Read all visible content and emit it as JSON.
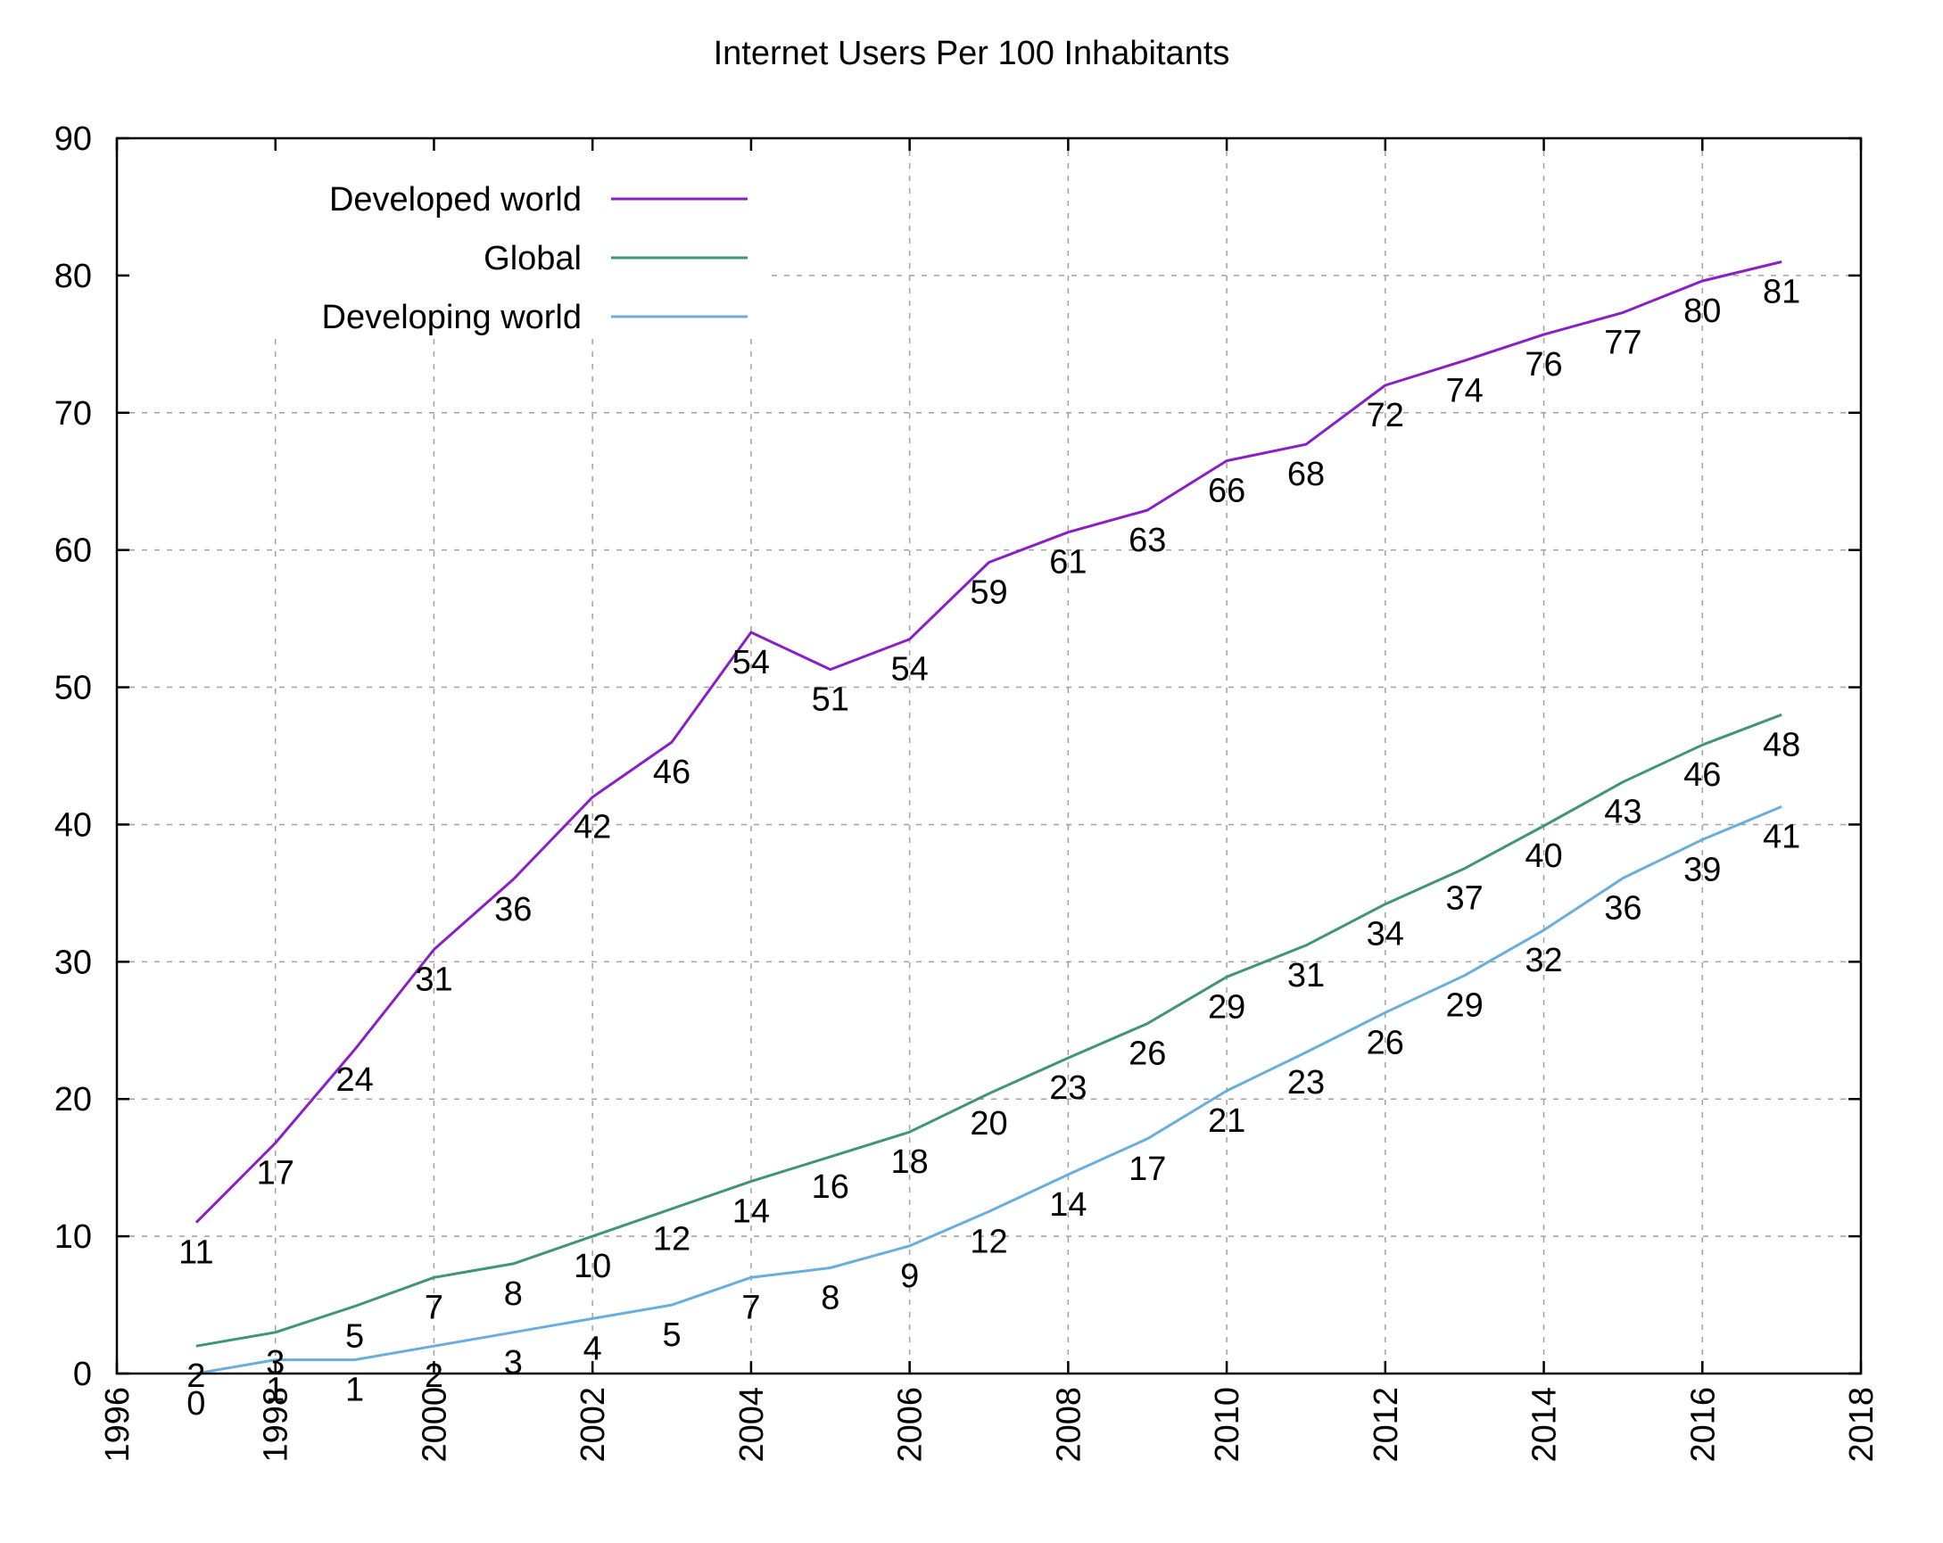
{
  "chart_data": {
    "type": "line",
    "title": "Internet Users Per 100 Inhabitants",
    "xlabel": "",
    "ylabel": "",
    "xlim": [
      1996,
      2018
    ],
    "ylim": [
      0,
      90
    ],
    "x_ticks": [
      "1996",
      "1998",
      "2000",
      "2002",
      "2004",
      "2006",
      "2008",
      "2010",
      "2012",
      "2014",
      "2016",
      "2018"
    ],
    "y_ticks": [
      "0",
      "10",
      "20",
      "30",
      "40",
      "50",
      "60",
      "70",
      "80",
      "90"
    ],
    "grid": true,
    "legend_position": "top-left",
    "x": [
      1997,
      1998,
      1999,
      2000,
      2001,
      2002,
      2003,
      2004,
      2005,
      2006,
      2007,
      2008,
      2009,
      2010,
      2011,
      2012,
      2013,
      2014,
      2015,
      2016,
      2017
    ],
    "series": [
      {
        "name": "Developed world",
        "color": "#8a1ec8",
        "values": [
          11,
          16.8,
          23.6,
          30.9,
          36,
          42,
          46,
          54,
          51.3,
          53.5,
          59.1,
          61.3,
          62.9,
          66.5,
          67.7,
          72,
          73.8,
          75.7,
          77.3,
          79.6,
          81
        ],
        "labels": [
          "11",
          "17",
          "24",
          "31",
          "36",
          "42",
          "46",
          "54",
          "51",
          "54",
          "59",
          "61",
          "63",
          "66",
          "68",
          "72",
          "74",
          "76",
          "77",
          "80",
          "81"
        ]
      },
      {
        "name": "Global",
        "color": "#3f9670",
        "values": [
          2,
          3,
          4.9,
          7,
          8,
          10,
          12,
          14,
          15.8,
          17.6,
          20.4,
          23,
          25.5,
          28.9,
          31.2,
          34.2,
          36.8,
          39.9,
          43.1,
          45.8,
          48
        ],
        "labels": [
          "2",
          "3",
          "5",
          "7",
          "8",
          "10",
          "12",
          "14",
          "16",
          "18",
          "20",
          "23",
          "26",
          "29",
          "31",
          "34",
          "37",
          "40",
          "43",
          "46",
          "48"
        ]
      },
      {
        "name": "Developing world",
        "color": "#6aaedb",
        "values": [
          0,
          1,
          1,
          2,
          3,
          4,
          5,
          7,
          7.7,
          9.3,
          11.8,
          14.5,
          17.1,
          20.6,
          23.4,
          26.3,
          29,
          32.3,
          36.1,
          38.9,
          41.3
        ],
        "labels": [
          "0",
          "1",
          "1",
          "2",
          "3",
          "4",
          "5",
          "7",
          "8",
          "9",
          "12",
          "14",
          "17",
          "21",
          "23",
          "26",
          "29",
          "32",
          "36",
          "39",
          "41"
        ]
      }
    ]
  }
}
